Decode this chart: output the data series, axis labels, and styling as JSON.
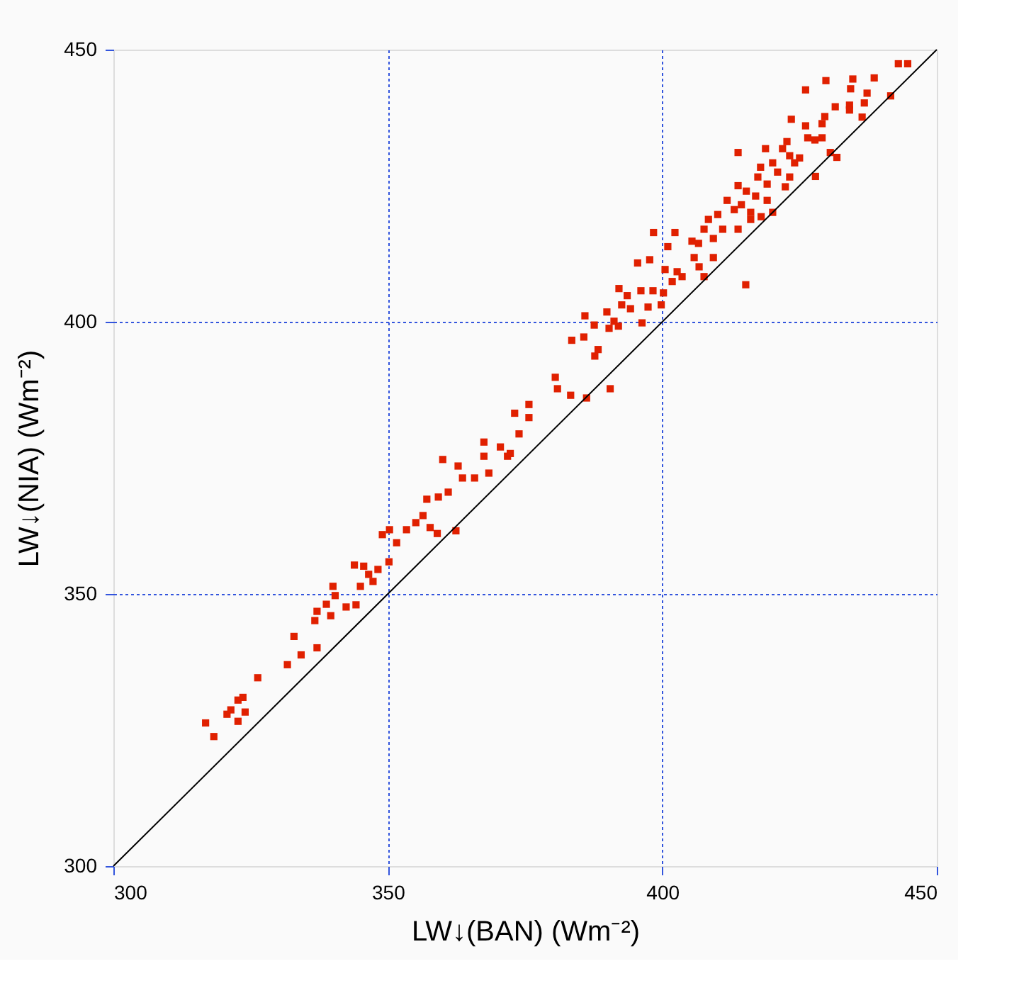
{
  "chart_data": {
    "type": "scatter",
    "xlabel": "LW↓(BAN)  (Wm⁻²)",
    "ylabel": "LW↓(NIA)  (Wm⁻²)",
    "xlim": [
      300,
      450
    ],
    "ylim": [
      300,
      450
    ],
    "xticks": [
      300,
      350,
      400,
      450
    ],
    "yticks": [
      300,
      350,
      400,
      450
    ],
    "grid": true,
    "marker": "square",
    "series": [
      {
        "color": "#e02000",
        "x": [
          316.8,
          318.3,
          320.7,
          321.4,
          322.7,
          323.6,
          322.7,
          324,
          326.3,
          331.7,
          334.2,
          332.9,
          337.1,
          336.7,
          337.1,
          339.6,
          338.8,
          340.4,
          340,
          342.4,
          344.2,
          345,
          343.9,
          345.6,
          346.5,
          347.3,
          348.2,
          350.2,
          351.6,
          349,
          350.3,
          353.4,
          355.1,
          356.4,
          357.7,
          359,
          357.1,
          359.2,
          361,
          362.8,
          363.6,
          365.8,
          368.4,
          360,
          367.5,
          367.5,
          370.5,
          371.8,
          362.4,
          372.3,
          373.1,
          375.7,
          375.7,
          373.9,
          380.5,
          380.9,
          383.3,
          386.2,
          390.5,
          383.5,
          385.7,
          388.3,
          387.7,
          385.9,
          387.6,
          389.9,
          390.3,
          392,
          391.2,
          392.6,
          394.2,
          396.3,
          392.1,
          393.6,
          396.1,
          398.3,
          397.4,
          399.8,
          400.2,
          395.5,
          397.7,
          398.4,
          401,
          402.3,
          400.5,
          401.8,
          402.7,
          403.6,
          405.4,
          406.6,
          405.8,
          406.7,
          407.6,
          409.3,
          407.6,
          408.4,
          410.1,
          411,
          409.3,
          411.8,
          413.1,
          414.4,
          413.8,
          415.3,
          416.1,
          417,
          417.4,
          417.9,
          419.1,
          419.1,
          416.1,
          418,
          413.8,
          415.2,
          420.1,
          418.8,
          420.1,
          421,
          421.9,
          423.2,
          422.7,
          424.1,
          425,
          423.2,
          422.4,
          413.8,
          427.9,
          430.6,
          431.8,
          423.5,
          426.1,
          426.5,
          427.8,
          429.1,
          429.1,
          429.6,
          426.1,
          429.8,
          431.5,
          434.1,
          434.1,
          436.4,
          436.8,
          437.3,
          434.7,
          434.3,
          438.6,
          441.6,
          443,
          444.7
        ],
        "values": [
          326.3,
          323.8,
          327.9,
          328.7,
          330.5,
          331,
          326.6,
          328.3,
          334.6,
          337,
          338.8,
          342.2,
          340.1,
          345.1,
          346.8,
          346,
          348.1,
          349.7,
          351.4,
          347.6,
          348,
          351.4,
          355.3,
          355.1,
          353.6,
          352.3,
          354.5,
          355.9,
          359.4,
          360.9,
          361.8,
          361.8,
          363.1,
          364.4,
          362.2,
          361.1,
          367.4,
          367.8,
          368.7,
          373.5,
          371.3,
          371.3,
          372.2,
          374.7,
          375.3,
          377.9,
          377,
          375.3,
          361.6,
          375.8,
          383.2,
          384.8,
          382.4,
          379.4,
          389.8,
          387.7,
          386.5,
          386,
          387.7,
          396.6,
          397.2,
          394.9,
          393.7,
          401.1,
          399.4,
          401.8,
          398.8,
          399.2,
          400.1,
          403.1,
          402.4,
          399.8,
          406.1,
          404.8,
          405.7,
          405.7,
          402.7,
          403.1,
          405.3,
          410.8,
          411.4,
          416.4,
          413.8,
          416.4,
          409.6,
          407.4,
          409.2,
          408.3,
          414.8,
          414.4,
          411.8,
          410.1,
          408.3,
          411.8,
          417,
          418.8,
          419.7,
          417,
          415.3,
          422.3,
          420.6,
          421.5,
          417,
          424,
          420.1,
          423.1,
          426.6,
          428.4,
          425.3,
          422.3,
          418.8,
          419.3,
          425,
          406.8,
          420.1,
          431.8,
          429.2,
          427.5,
          431.8,
          430.5,
          433.1,
          429.2,
          430.1,
          426.6,
          424.8,
          431.1,
          426.7,
          431.1,
          430.2,
          437.2,
          436,
          433.8,
          433.4,
          433.8,
          436.4,
          437.7,
          442.6,
          444.3,
          439.5,
          439.8,
          438.9,
          437.6,
          440.2,
          442,
          444.6,
          442.8,
          444.8,
          441.5,
          447.4,
          447.4
        ]
      },
      {
        "type": "line",
        "color": "#000000",
        "marker": "none",
        "line_style": "solid",
        "x": [
          300,
          450
        ],
        "values": [
          300,
          450
        ]
      }
    ]
  }
}
